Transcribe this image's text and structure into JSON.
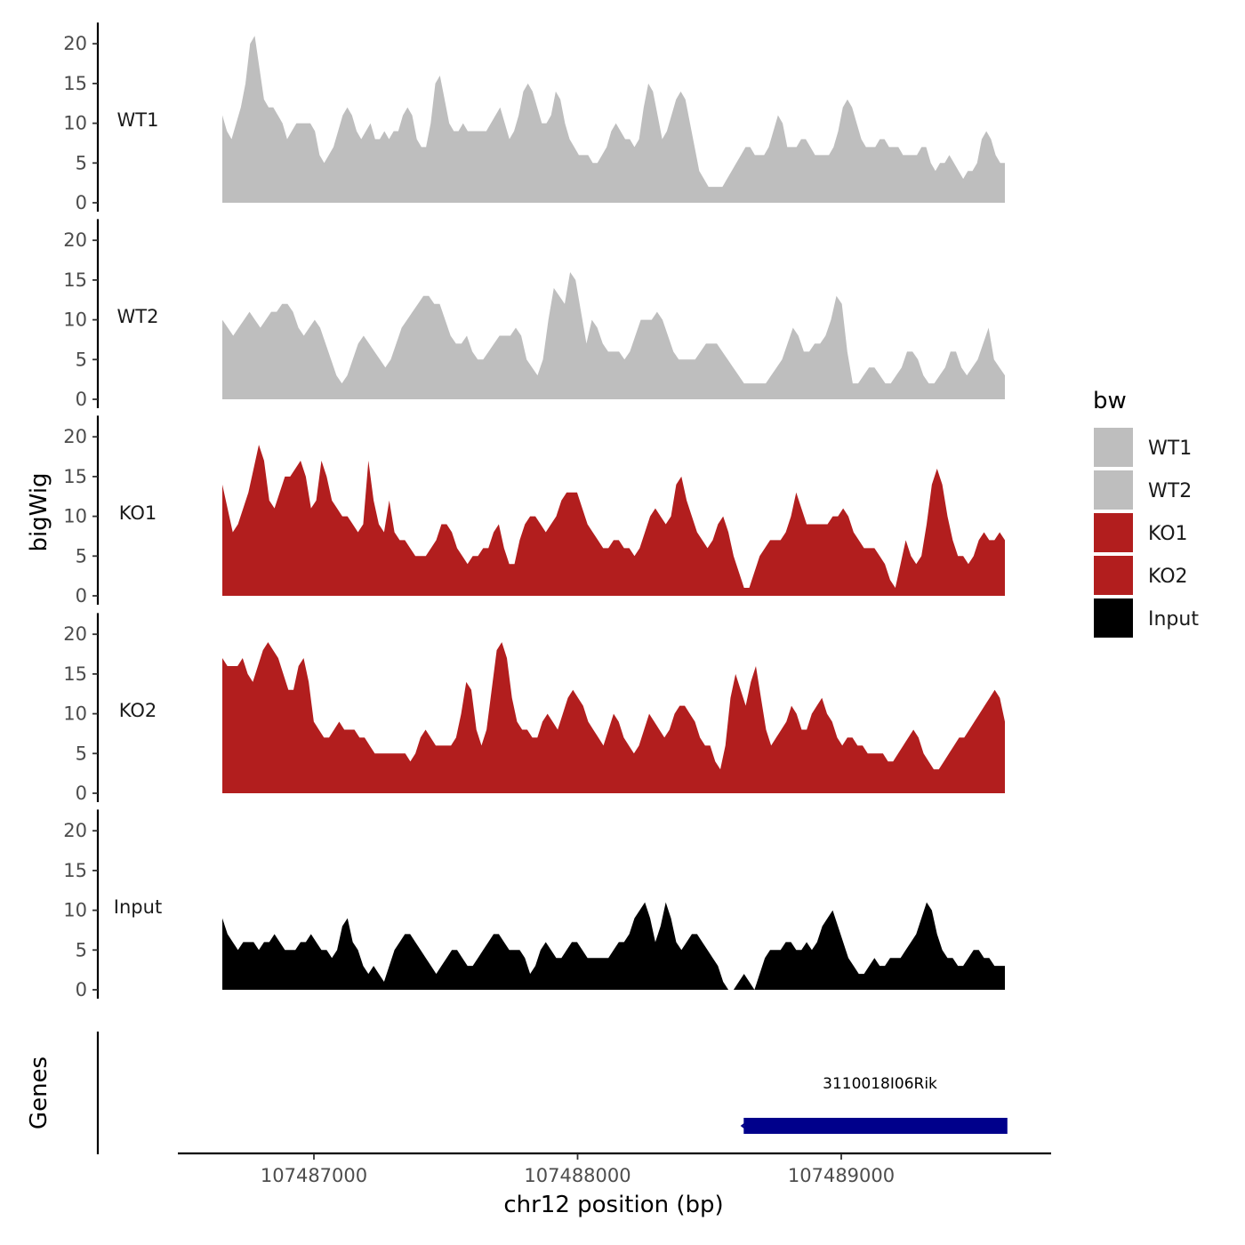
{
  "chart_data": {
    "type": "area",
    "x_range": [
      107486670,
      107489640
    ],
    "xlabel": "chr12 position (bp)",
    "ylabel": "bigWig",
    "genes_label": "Genes",
    "y_ticks": [
      0,
      5,
      10,
      15,
      20
    ],
    "y_tick_labels": [
      "0",
      "5",
      "10",
      "15",
      "20"
    ],
    "ylim": [
      0,
      22
    ],
    "x_ticks": [
      107487000,
      107488000,
      107489000
    ],
    "x_tick_labels": [
      "107487000",
      "107488000",
      "107489000"
    ],
    "legend": {
      "title": "bw",
      "entries": [
        {
          "label": "WT1",
          "color": "#bebebe"
        },
        {
          "label": "WT2",
          "color": "#bebebe"
        },
        {
          "label": "KO1",
          "color": "#b21e1e"
        },
        {
          "label": "KO2",
          "color": "#b21e1e"
        },
        {
          "label": "Input",
          "color": "#000000"
        }
      ]
    },
    "series": [
      {
        "name": "WT1",
        "color": "#bebebe",
        "values": [
          11,
          9,
          8,
          10,
          12,
          15,
          20,
          21,
          17,
          13,
          12,
          12,
          11,
          10,
          8,
          9,
          10,
          10,
          10,
          10,
          9,
          6,
          5,
          6,
          7,
          9,
          11,
          12,
          11,
          9,
          8,
          9,
          10,
          8,
          8,
          9,
          8,
          9,
          9,
          11,
          12,
          11,
          8,
          7,
          7,
          10,
          15,
          16,
          13,
          10,
          9,
          9,
          10,
          9,
          9,
          9,
          9,
          9,
          10,
          11,
          12,
          10,
          8,
          9,
          11,
          14,
          15,
          14,
          12,
          10,
          10,
          11,
          14,
          13,
          10,
          8,
          7,
          6,
          6,
          6,
          5,
          5,
          6,
          7,
          9,
          10,
          9,
          8,
          8,
          7,
          8,
          12,
          15,
          14,
          11,
          8,
          9,
          11,
          13,
          14,
          13,
          10,
          7,
          4,
          3,
          2,
          2,
          2,
          2,
          3,
          4,
          5,
          6,
          7,
          7,
          6,
          6,
          6,
          7,
          9,
          11,
          10,
          7,
          7,
          7,
          8,
          8,
          7,
          6,
          6,
          6,
          6,
          7,
          9,
          12,
          13,
          12,
          10,
          8,
          7,
          7,
          7,
          8,
          8,
          7,
          7,
          7,
          6,
          6,
          6,
          6,
          7,
          7,
          5,
          4,
          5,
          5,
          6,
          5,
          4,
          3,
          4,
          4,
          5,
          8,
          9,
          8,
          6,
          5,
          5
        ]
      },
      {
        "name": "WT2",
        "color": "#bebebe",
        "values": [
          10,
          9,
          8,
          9,
          10,
          11,
          10,
          9,
          10,
          11,
          11,
          12,
          12,
          11,
          9,
          8,
          9,
          10,
          9,
          7,
          5,
          3,
          2,
          3,
          5,
          7,
          8,
          7,
          6,
          5,
          4,
          5,
          7,
          9,
          10,
          11,
          12,
          13,
          13,
          12,
          12,
          10,
          8,
          7,
          7,
          8,
          6,
          5,
          5,
          6,
          7,
          8,
          8,
          8,
          9,
          8,
          5,
          4,
          3,
          5,
          10,
          14,
          13,
          12,
          16,
          15,
          11,
          7,
          10,
          9,
          7,
          6,
          6,
          6,
          5,
          6,
          8,
          10,
          10,
          10,
          11,
          10,
          8,
          6,
          5,
          5,
          5,
          5,
          6,
          7,
          7,
          7,
          6,
          5,
          4,
          3,
          2,
          2,
          2,
          2,
          2,
          3,
          4,
          5,
          7,
          9,
          8,
          6,
          6,
          7,
          7,
          8,
          10,
          13,
          12,
          6,
          2,
          2,
          3,
          4,
          4,
          3,
          2,
          2,
          3,
          4,
          6,
          6,
          5,
          3,
          2,
          2,
          3,
          4,
          6,
          6,
          4,
          3,
          4,
          5,
          7,
          9,
          5,
          4,
          3
        ]
      },
      {
        "name": "KO1",
        "color": "#b21e1e",
        "values": [
          14,
          11,
          8,
          9,
          11,
          13,
          16,
          19,
          17,
          12,
          11,
          13,
          15,
          15,
          16,
          17,
          15,
          11,
          12,
          17,
          15,
          12,
          11,
          10,
          10,
          9,
          8,
          9,
          17,
          12,
          9,
          8,
          12,
          8,
          7,
          7,
          6,
          5,
          5,
          5,
          6,
          7,
          9,
          9,
          8,
          6,
          5,
          4,
          5,
          5,
          6,
          6,
          8,
          9,
          6,
          4,
          4,
          7,
          9,
          10,
          10,
          9,
          8,
          9,
          10,
          12,
          13,
          13,
          13,
          11,
          9,
          8,
          7,
          6,
          6,
          7,
          7,
          6,
          6,
          5,
          6,
          8,
          10,
          11,
          10,
          9,
          10,
          14,
          15,
          12,
          10,
          8,
          7,
          6,
          7,
          9,
          10,
          8,
          5,
          3,
          1,
          1,
          3,
          5,
          6,
          7,
          7,
          7,
          8,
          10,
          13,
          11,
          9,
          9,
          9,
          9,
          9,
          10,
          10,
          11,
          10,
          8,
          7,
          6,
          6,
          6,
          5,
          4,
          2,
          1,
          4,
          7,
          5,
          4,
          5,
          9,
          14,
          16,
          14,
          10,
          7,
          5,
          5,
          4,
          5,
          7,
          8,
          7,
          7,
          8,
          7
        ]
      },
      {
        "name": "KO2",
        "color": "#b21e1e",
        "values": [
          17,
          16,
          16,
          16,
          17,
          15,
          14,
          16,
          18,
          19,
          18,
          17,
          15,
          13,
          13,
          16,
          17,
          14,
          9,
          8,
          7,
          7,
          8,
          9,
          8,
          8,
          8,
          7,
          7,
          6,
          5,
          5,
          5,
          5,
          5,
          5,
          5,
          4,
          5,
          7,
          8,
          7,
          6,
          6,
          6,
          6,
          7,
          10,
          14,
          13,
          8,
          6,
          8,
          13,
          18,
          19,
          17,
          12,
          9,
          8,
          8,
          7,
          7,
          9,
          10,
          9,
          8,
          10,
          12,
          13,
          12,
          11,
          9,
          8,
          7,
          6,
          8,
          10,
          9,
          7,
          6,
          5,
          6,
          8,
          10,
          9,
          8,
          7,
          8,
          10,
          11,
          11,
          10,
          9,
          7,
          6,
          6,
          4,
          3,
          6,
          12,
          15,
          13,
          11,
          14,
          16,
          12,
          8,
          6,
          7,
          8,
          9,
          11,
          10,
          8,
          8,
          10,
          11,
          12,
          10,
          9,
          7,
          6,
          7,
          7,
          6,
          6,
          5,
          5,
          5,
          5,
          4,
          4,
          5,
          6,
          7,
          8,
          7,
          5,
          4,
          3,
          3,
          4,
          5,
          6,
          7,
          7,
          8,
          9,
          10,
          11,
          12,
          13,
          12,
          9
        ]
      },
      {
        "name": "Input",
        "color": "#000000",
        "values": [
          9,
          7,
          6,
          5,
          6,
          6,
          6,
          5,
          6,
          6,
          7,
          6,
          5,
          5,
          5,
          6,
          6,
          7,
          6,
          5,
          5,
          4,
          5,
          8,
          9,
          6,
          5,
          3,
          2,
          3,
          2,
          1,
          3,
          5,
          6,
          7,
          7,
          6,
          5,
          4,
          3,
          2,
          3,
          4,
          5,
          5,
          4,
          3,
          3,
          4,
          5,
          6,
          7,
          7,
          6,
          5,
          5,
          5,
          4,
          2,
          3,
          5,
          6,
          5,
          4,
          4,
          5,
          6,
          6,
          5,
          4,
          4,
          4,
          4,
          4,
          5,
          6,
          6,
          7,
          9,
          10,
          11,
          9,
          6,
          8,
          11,
          9,
          6,
          5,
          6,
          7,
          7,
          6,
          5,
          4,
          3,
          1,
          0,
          0,
          1,
          2,
          1,
          0,
          2,
          4,
          5,
          5,
          5,
          6,
          6,
          5,
          5,
          6,
          5,
          6,
          8,
          9,
          10,
          8,
          6,
          4,
          3,
          2,
          2,
          3,
          4,
          3,
          3,
          4,
          4,
          4,
          5,
          6,
          7,
          9,
          11,
          10,
          7,
          5,
          4,
          4,
          3,
          3,
          4,
          5,
          5,
          4,
          4,
          3,
          3,
          3
        ]
      }
    ],
    "genes": [
      {
        "name": "3110018I06Rik",
        "start": 107488630,
        "end": 107489630,
        "strand": "-",
        "color": "#00008b"
      }
    ]
  }
}
